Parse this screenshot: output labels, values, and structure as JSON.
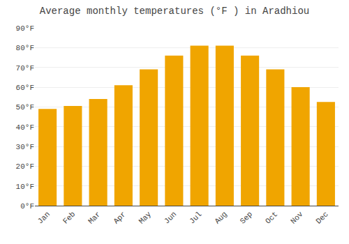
{
  "chart_data": {
    "type": "bar",
    "title": "Average monthly temperatures (°F ) in Aradhiou",
    "categories": [
      "Jan",
      "Feb",
      "Mar",
      "Apr",
      "May",
      "Jun",
      "Jul",
      "Aug",
      "Sep",
      "Oct",
      "Nov",
      "Dec"
    ],
    "values": [
      49,
      50.5,
      54,
      61,
      69,
      76,
      81,
      81,
      76,
      69,
      60,
      52.5
    ],
    "color": "#F0A500",
    "ylim": [
      0,
      90
    ],
    "yticks": [
      {
        "value": 0,
        "label": "0°F"
      },
      {
        "value": 10,
        "label": "10°F"
      },
      {
        "value": 20,
        "label": "20°F"
      },
      {
        "value": 30,
        "label": "30°F"
      },
      {
        "value": 40,
        "label": "40°F"
      },
      {
        "value": 50,
        "label": "50°F"
      },
      {
        "value": 60,
        "label": "60°F"
      },
      {
        "value": 70,
        "label": "70°F"
      },
      {
        "value": 80,
        "label": "80°F"
      },
      {
        "value": 90,
        "label": "90°F"
      }
    ],
    "grid": true
  }
}
